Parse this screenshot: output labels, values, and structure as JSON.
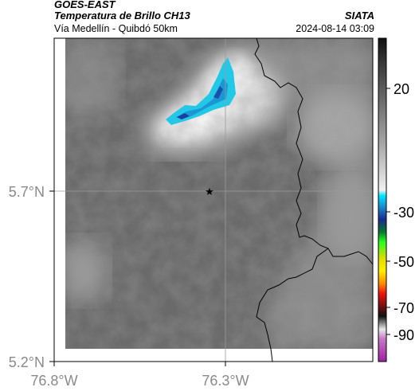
{
  "header": {
    "satellite": "GOES-EAST",
    "product": "Temperatura de Brillo CH13",
    "route": "Vía Medellín - Quibdó 50km",
    "organization": "SIATA",
    "datetime": "2024-08-14 03:09"
  },
  "axes": {
    "lat_labels": [
      "5.7°N",
      "5.2°N"
    ],
    "lon_labels": [
      "76.8°W",
      "76.3°W"
    ]
  },
  "colorbar": {
    "tick_labels": [
      "20",
      "-30",
      "-50",
      "-70",
      "-90"
    ]
  },
  "colors": {
    "cold_cloud": "#22c8e6",
    "cold_cloud_core": "#1a3fa0",
    "background_gray": "#6a6a6a",
    "border_line": "#000000",
    "grid_line": "#9a9a9a"
  },
  "map": {
    "marker_icon": "star-icon"
  }
}
